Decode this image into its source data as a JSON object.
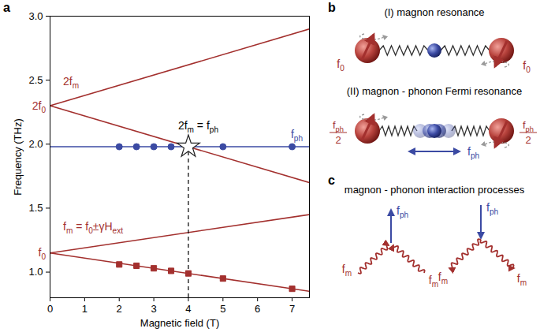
{
  "chart_data": {
    "type": "line",
    "panel_label": "a",
    "x_label": "Magnetic field (T)",
    "y_label": "Frequency (THz)",
    "xlim": [
      0,
      7.5
    ],
    "xticks": [
      0,
      1,
      2,
      3,
      4,
      5,
      6,
      7
    ],
    "ylim": [
      0.8,
      3
    ],
    "yticks": [
      1,
      1.5,
      2,
      2.5,
      3
    ],
    "series": [
      {
        "type": "line",
        "color": "#a3302e",
        "label": [
          "f",
          {
            "sub": "m"
          },
          " = f",
          {
            "sub": "0"
          },
          "±γH",
          {
            "sub": "ext"
          }
        ],
        "x": [
          0,
          7.5
        ],
        "values": [
          1.15,
          1.45
        ]
      },
      {
        "type": "line",
        "color": "#a3302e",
        "x": [
          0,
          7.5
        ],
        "values": [
          1.15,
          0.85
        ]
      },
      {
        "type": "line",
        "color": "#a3302e",
        "label": [
          "2f",
          {
            "sub": "m"
          }
        ],
        "x": [
          0,
          7.5
        ],
        "values": [
          2.3,
          2.9
        ]
      },
      {
        "type": "line",
        "color": "#a3302e",
        "x": [
          0,
          7.5
        ],
        "values": [
          2.3,
          1.7
        ]
      },
      {
        "type": "line",
        "color": "#3b4aa3",
        "label": [
          "f",
          {
            "sub": "ph"
          }
        ],
        "x": [
          0,
          7.5
        ],
        "values": [
          1.98,
          1.98
        ]
      },
      {
        "type": "scatter",
        "marker": "square",
        "color": "#a3302e",
        "x": [
          2,
          2.5,
          3,
          3.5,
          4,
          5,
          7
        ],
        "values": [
          1.06,
          1.05,
          1.03,
          1.01,
          0.99,
          0.95,
          0.87
        ]
      },
      {
        "type": "scatter",
        "marker": "circle",
        "color": "#3b4aa3",
        "x": [
          2,
          2.5,
          3,
          3.5,
          5,
          7
        ],
        "values": [
          1.98,
          1.98,
          1.98,
          1.98,
          1.98,
          1.98
        ]
      },
      {
        "type": "scatter",
        "marker": "star",
        "color": "#ffffff",
        "label": [
          "2f",
          {
            "sub": "m"
          },
          " = f",
          {
            "sub": "ph"
          }
        ],
        "x": [
          4
        ],
        "values": [
          1.98
        ]
      }
    ],
    "annotations": [
      {
        "text": [
          "f",
          {
            "sub": "0"
          }
        ],
        "y": 1.15,
        "color": "#a3302e"
      },
      {
        "text": [
          "2f",
          {
            "sub": "0"
          }
        ],
        "y": 2.3,
        "color": "#a3302e"
      }
    ],
    "reference_lines": [
      {
        "x": 4,
        "line_style": "dashed",
        "color": "#000000"
      }
    ]
  },
  "diagram": {
    "panel_b": {
      "label": "b",
      "magnon_resonance": {
        "title": "(I) magnon resonance",
        "frequency_label": [
          "f",
          {
            "sub": "0"
          }
        ]
      },
      "fermi_resonance": {
        "title": "(II) magnon - phonon Fermi resonance",
        "magnon_label": {
          "numerator": [
            "f",
            {
              "sub": "ph"
            }
          ],
          "denominator": "2"
        },
        "phonon_label": [
          "f",
          {
            "sub": "ph"
          }
        ]
      }
    },
    "panel_c": {
      "label": "c",
      "title": "magnon - phonon interaction processes",
      "phonon_label": [
        "f",
        {
          "sub": "ph"
        }
      ],
      "magnon_label": [
        "f",
        {
          "sub": "m"
        }
      ]
    }
  }
}
